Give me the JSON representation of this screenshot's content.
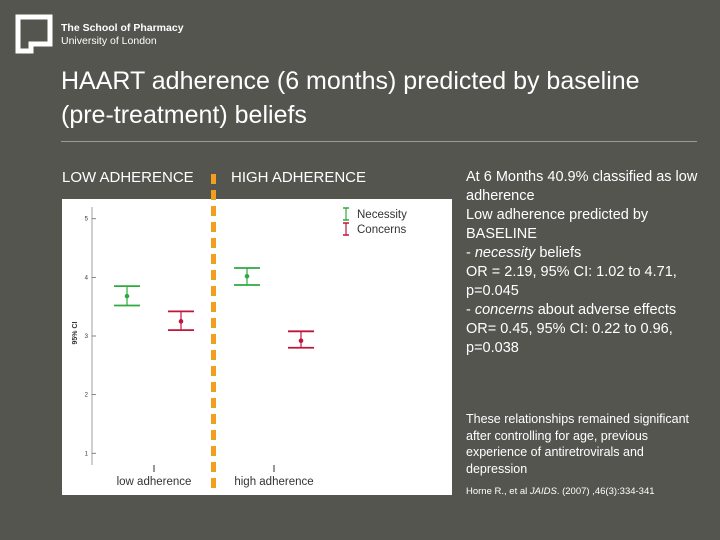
{
  "logo": {
    "icon": "pharmacy-logo-icon",
    "line1": "The School of Pharmacy",
    "line2": "University of London"
  },
  "title": "HAART adherence (6 months) predicted by baseline (pre-treatment) beliefs",
  "labels": {
    "low": "LOW ADHERENCE",
    "high": "HIGH ADHERENCE"
  },
  "chart_data": {
    "type": "scatter",
    "ylabel": "95% CI",
    "ylim": [
      0.8,
      5.2
    ],
    "yticks": [
      "1",
      "2",
      "3",
      "4",
      "5"
    ],
    "categories": [
      "low adherence",
      "high adherence"
    ],
    "legend_position": "top-right",
    "series": [
      {
        "name": "Necessity",
        "color": "#2eaa3f",
        "points": [
          {
            "category": "low adherence",
            "mean": 3.68,
            "lower": 3.52,
            "upper": 3.85
          },
          {
            "category": "high adherence",
            "mean": 4.02,
            "lower": 3.87,
            "upper": 4.16
          }
        ]
      },
      {
        "name": "Concerns",
        "color": "#c0143c",
        "points": [
          {
            "category": "low adherence",
            "mean": 3.25,
            "lower": 3.1,
            "upper": 3.42
          },
          {
            "category": "high adherence",
            "mean": 2.92,
            "lower": 2.8,
            "upper": 3.08
          }
        ]
      }
    ]
  },
  "summary": {
    "line1": "At 6 Months 40.9% classified as low adherence",
    "line2": "Low adherence predicted by BASELINE",
    "nec_prefix": "- ",
    "nec_word": "necessity",
    "nec_suffix": " beliefs",
    "nec_stats": "OR = 2.19, 95% CI: 1.02 to 4.71, p=0.045",
    "con_prefix": "- ",
    "con_word": "concerns",
    "con_suffix": " about adverse effects",
    "con_stats": "OR= 0.45, 95% CI: 0.22 to 0.96, p=0.038"
  },
  "note": "These relationships remained significant after controlling for age, previous experience of antiretrovirals and depression",
  "reference": {
    "authors": "Horne R., et al ",
    "journal": "JAIDS",
    "rest": ". (2007) ,46(3):334-341"
  }
}
